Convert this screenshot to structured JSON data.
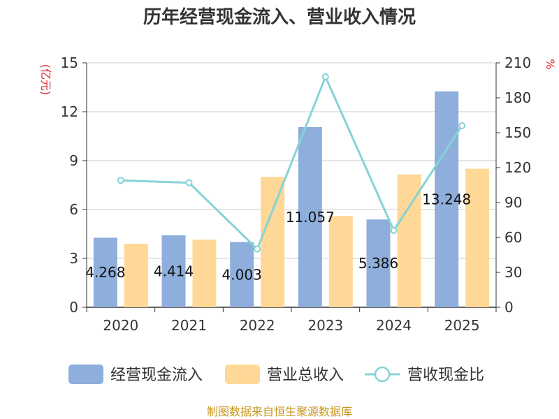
{
  "chart_data": {
    "type": "bar",
    "title": "历年经营现金流入、营业收入情况",
    "categories": [
      "2020",
      "2021",
      "2022",
      "2023",
      "2024",
      "2025"
    ],
    "series": [
      {
        "name": "经营现金流入",
        "type": "bar",
        "axis": "left",
        "values": [
          4.268,
          4.414,
          4.003,
          11.057,
          5.386,
          13.248
        ],
        "labels": [
          "4.268",
          "4.414",
          "4.003",
          "11.057",
          "5.386",
          "13.248"
        ]
      },
      {
        "name": "营业总收入",
        "type": "bar",
        "axis": "left",
        "values": [
          3.9,
          4.15,
          8.0,
          5.6,
          8.15,
          8.5
        ]
      },
      {
        "name": "营收现金比",
        "type": "line",
        "axis": "right",
        "values": [
          109,
          107,
          50,
          198,
          66,
          156
        ]
      }
    ],
    "yleft": {
      "label": "(亿元)",
      "min": 0,
      "max": 15,
      "ticks": [
        "0",
        "3",
        "6",
        "9",
        "12",
        "15"
      ]
    },
    "yright": {
      "label": "%",
      "min": 0,
      "max": 210,
      "ticks": [
        "0",
        "30",
        "60",
        "90",
        "120",
        "150",
        "180",
        "210"
      ]
    },
    "grid": true,
    "legend_position": "bottom",
    "colors": {
      "cash_inflow": "#8eaedb",
      "revenue": "#ffd796",
      "ratio": "#86d3d7"
    }
  },
  "source": "制图数据来自恒生聚源数据库"
}
